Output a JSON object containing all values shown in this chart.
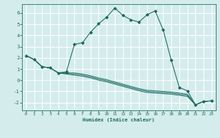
{
  "background_color": "#d4ecec",
  "grid_color": "#b0d8d8",
  "line_color": "#1a6b60",
  "xlabel": "Humidex (Indice chaleur)",
  "xlim": [
    -0.5,
    23.5
  ],
  "ylim": [
    -2.7,
    6.8
  ],
  "xticks": [
    0,
    1,
    2,
    3,
    4,
    5,
    6,
    7,
    8,
    9,
    10,
    11,
    12,
    13,
    14,
    15,
    16,
    17,
    18,
    19,
    20,
    21,
    22,
    23
  ],
  "yticks": [
    -2,
    -1,
    0,
    1,
    2,
    3,
    4,
    5,
    6
  ],
  "main_series": [
    2.2,
    1.85,
    1.2,
    1.1,
    0.65,
    0.75,
    3.2,
    3.35,
    4.3,
    5.05,
    5.65,
    6.45,
    5.8,
    5.4,
    5.2,
    5.85,
    6.2,
    4.5,
    1.8,
    -0.65,
    -0.95,
    -2.2,
    -1.9,
    -1.85
  ],
  "flat_series": [
    [
      2.2,
      1.85,
      1.2,
      1.1,
      0.65,
      0.65,
      0.65,
      0.55,
      0.4,
      0.2,
      0.05,
      -0.15,
      -0.35,
      -0.55,
      -0.75,
      -0.9,
      -0.95,
      -1.0,
      -1.05,
      -1.15,
      -1.25,
      -2.2,
      -1.9,
      -1.85
    ],
    [
      2.2,
      1.85,
      1.2,
      1.1,
      0.65,
      0.6,
      0.55,
      0.45,
      0.3,
      0.1,
      -0.05,
      -0.25,
      -0.45,
      -0.65,
      -0.85,
      -1.0,
      -1.05,
      -1.1,
      -1.15,
      -1.25,
      -1.35,
      -2.2,
      -1.9,
      -1.85
    ],
    [
      2.2,
      1.85,
      1.2,
      1.1,
      0.65,
      0.55,
      0.45,
      0.35,
      0.2,
      0.0,
      -0.15,
      -0.35,
      -0.55,
      -0.75,
      -0.95,
      -1.1,
      -1.15,
      -1.2,
      -1.25,
      -1.35,
      -1.45,
      -2.2,
      -1.9,
      -1.85
    ]
  ]
}
